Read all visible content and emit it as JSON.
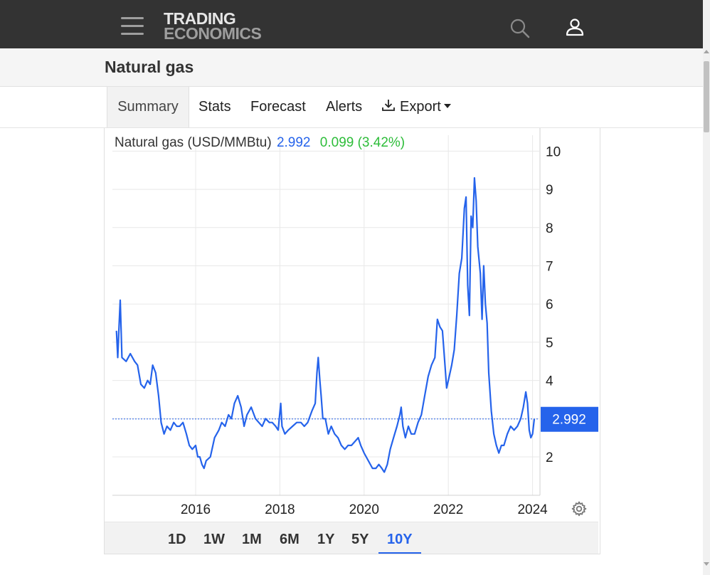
{
  "header": {
    "logo_line1": "TRADING",
    "logo_line2": "ECONOMICS",
    "icons": [
      "hamburger-menu-icon",
      "search-icon",
      "user-icon"
    ]
  },
  "page": {
    "title": "Natural gas"
  },
  "tabs": [
    {
      "label": "Summary",
      "active": true
    },
    {
      "label": "Stats"
    },
    {
      "label": "Forecast"
    },
    {
      "label": "Alerts"
    },
    {
      "label": "Export",
      "icon": "download-icon",
      "dropdown": true
    }
  ],
  "legend": {
    "name": "Natural gas (USD/MMBtu)",
    "price": "2.992",
    "change": "0.099 (3.42%)"
  },
  "ranges": [
    {
      "label": "1D"
    },
    {
      "label": "1W"
    },
    {
      "label": "1M"
    },
    {
      "label": "6M"
    },
    {
      "label": "1Y"
    },
    {
      "label": "5Y"
    },
    {
      "label": "10Y",
      "active": true
    }
  ],
  "colors": {
    "line": "#2563eb",
    "change_positive": "#2ebd3a",
    "header_bg": "#333333",
    "price_tag_bg": "#2563eb"
  },
  "chart_data": {
    "type": "line",
    "series": [
      {
        "points": [
          [
            2014.12,
            5.3
          ],
          [
            2014.15,
            4.6
          ],
          [
            2014.18,
            5.4
          ],
          [
            2014.21,
            6.1
          ],
          [
            2014.25,
            4.6
          ],
          [
            2014.35,
            4.5
          ],
          [
            2014.45,
            4.7
          ],
          [
            2014.55,
            4.5
          ],
          [
            2014.62,
            4.4
          ],
          [
            2014.7,
            3.9
          ],
          [
            2014.78,
            3.8
          ],
          [
            2014.86,
            4.0
          ],
          [
            2014.92,
            3.9
          ],
          [
            2014.98,
            4.4
          ],
          [
            2015.05,
            4.2
          ],
          [
            2015.12,
            3.6
          ],
          [
            2015.18,
            2.9
          ],
          [
            2015.25,
            2.6
          ],
          [
            2015.32,
            2.8
          ],
          [
            2015.4,
            2.7
          ],
          [
            2015.48,
            2.9
          ],
          [
            2015.55,
            2.8
          ],
          [
            2015.62,
            2.8
          ],
          [
            2015.7,
            2.9
          ],
          [
            2015.78,
            2.6
          ],
          [
            2015.85,
            2.3
          ],
          [
            2015.92,
            2.2
          ],
          [
            2016.0,
            2.3
          ],
          [
            2016.05,
            2.0
          ],
          [
            2016.1,
            2.0
          ],
          [
            2016.15,
            1.8
          ],
          [
            2016.2,
            1.7
          ],
          [
            2016.25,
            1.9
          ],
          [
            2016.35,
            2.0
          ],
          [
            2016.45,
            2.5
          ],
          [
            2016.55,
            2.7
          ],
          [
            2016.62,
            2.9
          ],
          [
            2016.7,
            2.8
          ],
          [
            2016.78,
            3.1
          ],
          [
            2016.85,
            3.0
          ],
          [
            2016.92,
            3.4
          ],
          [
            2017.0,
            3.6
          ],
          [
            2017.08,
            3.3
          ],
          [
            2017.15,
            2.8
          ],
          [
            2017.22,
            3.1
          ],
          [
            2017.32,
            3.3
          ],
          [
            2017.42,
            3.0
          ],
          [
            2017.5,
            2.9
          ],
          [
            2017.58,
            2.8
          ],
          [
            2017.66,
            3.0
          ],
          [
            2017.75,
            2.9
          ],
          [
            2017.82,
            2.9
          ],
          [
            2017.9,
            2.8
          ],
          [
            2017.96,
            2.7
          ],
          [
            2018.02,
            3.4
          ],
          [
            2018.05,
            2.8
          ],
          [
            2018.12,
            2.6
          ],
          [
            2018.2,
            2.7
          ],
          [
            2018.3,
            2.8
          ],
          [
            2018.4,
            2.9
          ],
          [
            2018.5,
            2.9
          ],
          [
            2018.58,
            2.8
          ],
          [
            2018.66,
            2.9
          ],
          [
            2018.76,
            3.2
          ],
          [
            2018.84,
            3.4
          ],
          [
            2018.88,
            4.2
          ],
          [
            2018.91,
            4.6
          ],
          [
            2018.95,
            4.0
          ],
          [
            2018.98,
            3.6
          ],
          [
            2019.02,
            3.0
          ],
          [
            2019.08,
            3.0
          ],
          [
            2019.15,
            2.6
          ],
          [
            2019.22,
            2.8
          ],
          [
            2019.3,
            2.6
          ],
          [
            2019.38,
            2.5
          ],
          [
            2019.46,
            2.3
          ],
          [
            2019.54,
            2.2
          ],
          [
            2019.62,
            2.3
          ],
          [
            2019.7,
            2.3
          ],
          [
            2019.78,
            2.4
          ],
          [
            2019.86,
            2.5
          ],
          [
            2019.92,
            2.3
          ],
          [
            2020.0,
            2.1
          ],
          [
            2020.1,
            1.9
          ],
          [
            2020.2,
            1.7
          ],
          [
            2020.28,
            1.7
          ],
          [
            2020.35,
            1.8
          ],
          [
            2020.42,
            1.7
          ],
          [
            2020.48,
            1.6
          ],
          [
            2020.55,
            1.8
          ],
          [
            2020.62,
            2.2
          ],
          [
            2020.7,
            2.5
          ],
          [
            2020.78,
            2.8
          ],
          [
            2020.85,
            3.1
          ],
          [
            2020.88,
            3.3
          ],
          [
            2020.92,
            2.8
          ],
          [
            2020.98,
            2.5
          ],
          [
            2021.05,
            2.8
          ],
          [
            2021.12,
            2.6
          ],
          [
            2021.2,
            2.6
          ],
          [
            2021.28,
            2.9
          ],
          [
            2021.36,
            3.1
          ],
          [
            2021.44,
            3.6
          ],
          [
            2021.52,
            4.1
          ],
          [
            2021.6,
            4.4
          ],
          [
            2021.68,
            4.6
          ],
          [
            2021.74,
            5.6
          ],
          [
            2021.8,
            5.4
          ],
          [
            2021.86,
            5.3
          ],
          [
            2021.9,
            4.7
          ],
          [
            2021.96,
            3.8
          ],
          [
            2022.02,
            4.1
          ],
          [
            2022.08,
            4.4
          ],
          [
            2022.14,
            4.8
          ],
          [
            2022.2,
            5.7
          ],
          [
            2022.26,
            6.8
          ],
          [
            2022.32,
            7.2
          ],
          [
            2022.38,
            8.5
          ],
          [
            2022.42,
            8.8
          ],
          [
            2022.46,
            6.5
          ],
          [
            2022.5,
            5.7
          ],
          [
            2022.54,
            8.3
          ],
          [
            2022.58,
            8.0
          ],
          [
            2022.62,
            9.3
          ],
          [
            2022.66,
            8.7
          ],
          [
            2022.7,
            7.5
          ],
          [
            2022.76,
            6.8
          ],
          [
            2022.8,
            5.6
          ],
          [
            2022.84,
            7.0
          ],
          [
            2022.88,
            6.0
          ],
          [
            2022.92,
            5.5
          ],
          [
            2022.96,
            4.2
          ],
          [
            2023.02,
            3.2
          ],
          [
            2023.08,
            2.6
          ],
          [
            2023.14,
            2.3
          ],
          [
            2023.2,
            2.1
          ],
          [
            2023.26,
            2.3
          ],
          [
            2023.32,
            2.3
          ],
          [
            2023.4,
            2.6
          ],
          [
            2023.48,
            2.8
          ],
          [
            2023.56,
            2.7
          ],
          [
            2023.64,
            2.8
          ],
          [
            2023.72,
            3.0
          ],
          [
            2023.78,
            3.3
          ],
          [
            2023.84,
            3.7
          ],
          [
            2023.88,
            3.4
          ],
          [
            2023.92,
            2.7
          ],
          [
            2023.96,
            2.5
          ],
          [
            2024.0,
            2.6
          ],
          [
            2024.04,
            2.99
          ]
        ]
      }
    ],
    "x_ticks": [
      "2016",
      "2018",
      "2020",
      "2022",
      "2024"
    ],
    "y_ticks": [
      2,
      3,
      4,
      5,
      6,
      7,
      8,
      9,
      10
    ],
    "y_tick_labels": [
      "2",
      "4",
      "5",
      "6",
      "7",
      "8",
      "9",
      "10"
    ],
    "ylim": [
      1,
      10.3
    ],
    "xlim": [
      2014.12,
      2024.25
    ],
    "last_value": 2.992,
    "last_value_label": "2.992",
    "grid": true,
    "y_axis_side": "right"
  }
}
